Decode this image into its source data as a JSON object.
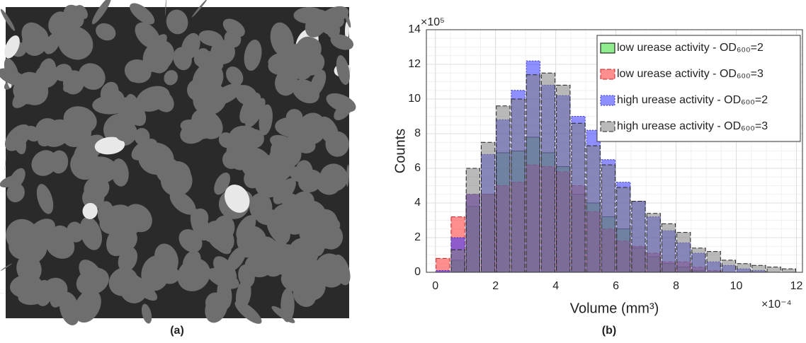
{
  "image_panel": {
    "caption": "(a)"
  },
  "chart_data": {
    "type": "histogram",
    "caption": "(b)",
    "xlabel": "Volume (mm³)",
    "ylabel": "Counts",
    "x_exponent": "×10⁻⁴",
    "y_exponent": "×10⁵",
    "xlim": [
      -0.3,
      12.2
    ],
    "ylim": [
      0,
      14
    ],
    "xticks": [
      0,
      2,
      4,
      6,
      8,
      10,
      12
    ],
    "yticks": [
      0,
      2,
      4,
      6,
      8,
      10,
      12,
      14
    ],
    "grid": true,
    "legend": "upper right",
    "bins": [
      0,
      0.5,
      1,
      1.5,
      2,
      2.5,
      3,
      3.5,
      4,
      4.5,
      5,
      5.5,
      6,
      6.5,
      7,
      7.5,
      8,
      8.5,
      9,
      9.5,
      10,
      10.5,
      11,
      11.5,
      12
    ],
    "series": [
      {
        "name": "low urease activity - OD₆₀₀=2",
        "color": "#33dd33",
        "edge": "#000000",
        "values": [
          0,
          0.7,
          3.8,
          4.5,
          6.9,
          7.0,
          7.8,
          6.9,
          6.1,
          4.5,
          4.0,
          3.2,
          2.5,
          1.4,
          0.9,
          0.5,
          0.3,
          0.1,
          0,
          0,
          0,
          0,
          0,
          0
        ]
      },
      {
        "name": "low urease activity - OD₆₀₀=3",
        "color": "#ff3333",
        "edge": "#cc2222",
        "values": [
          0.8,
          3.2,
          4.5,
          4.5,
          5.0,
          5.2,
          6.2,
          6.1,
          5.8,
          5.0,
          3.5,
          2.5,
          1.8,
          1.5,
          1.1,
          0.6,
          0.6,
          0.3,
          0.1,
          0,
          0,
          0,
          0,
          0
        ]
      },
      {
        "name": "high urease activity - OD₆₀₀=2",
        "color": "#3333ff",
        "edge": "#3333cc",
        "values": [
          0.1,
          2.0,
          4.5,
          6.8,
          8.8,
          10.5,
          12.2,
          10.8,
          10.2,
          9.0,
          8.2,
          6.5,
          5.2,
          4.1,
          3.2,
          2.4,
          1.7,
          1.1,
          0.6,
          0.4,
          0.2,
          0.1,
          0,
          0
        ]
      },
      {
        "name": "high urease activity - OD₆₀₀=3",
        "color": "#808080",
        "edge": "#222222",
        "values": [
          0,
          1.3,
          6.0,
          7.5,
          9.6,
          10.0,
          11.4,
          11.5,
          10.8,
          8.6,
          7.3,
          6.2,
          4.9,
          4.1,
          3.4,
          2.8,
          2.3,
          1.4,
          1.2,
          0.7,
          0.5,
          0.4,
          0.3,
          0.2
        ]
      }
    ]
  }
}
